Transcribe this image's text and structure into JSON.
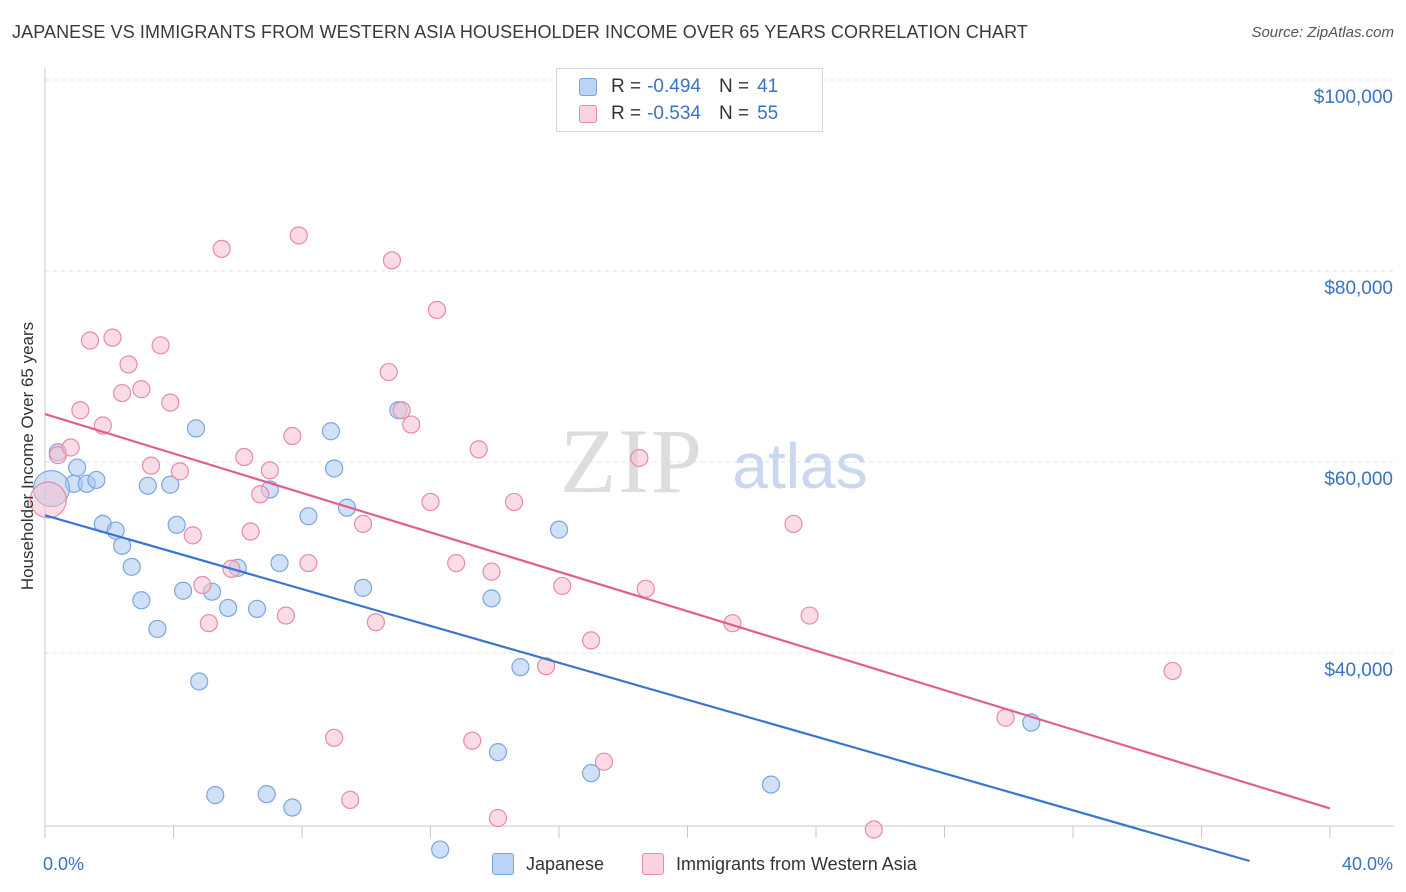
{
  "title": "JAPANESE VS IMMIGRANTS FROM WESTERN ASIA HOUSEHOLDER INCOME OVER 65 YEARS CORRELATION CHART",
  "source": "Source: ZipAtlas.com",
  "watermark": {
    "zip": "ZIP",
    "atlas": "atlas"
  },
  "legend_stats": [
    {
      "r_label": "R =",
      "r_value": "-0.494",
      "n_label": "N =",
      "n_value": "41",
      "color": "#a9c8f0",
      "border": "#7aa6e0"
    },
    {
      "r_label": "R =",
      "r_value": "-0.534",
      "n_label": "N =",
      "n_value": "55",
      "color": "#f7c0d1",
      "border": "#e88aa8"
    }
  ],
  "chart_data": {
    "type": "scatter",
    "ylabel": "Householder Income Over 65 years",
    "x_tick_labels": [
      "0.0%",
      "40.0%"
    ],
    "y_tick_labels": [
      "$40,000",
      "$60,000",
      "$80,000",
      "$100,000"
    ],
    "xlim": [
      0,
      40
    ],
    "ylim": [
      20000,
      102000
    ],
    "y_ticks": [
      40000,
      60000,
      80000,
      100000
    ],
    "grid": true,
    "legend_position": "bottom",
    "series": [
      {
        "name": "Japanese",
        "color": "#3a76d0",
        "fill": "#a9c8f0",
        "trend": {
          "x": [
            0,
            37.5
          ],
          "y": [
            56200,
            20000
          ]
        },
        "points": [
          [
            0.4,
            62800
          ],
          [
            0.9,
            59500
          ],
          [
            1.0,
            61200
          ],
          [
            1.3,
            59500
          ],
          [
            1.6,
            59900
          ],
          [
            1.8,
            55300
          ],
          [
            2.2,
            54600
          ],
          [
            2.4,
            53000
          ],
          [
            2.7,
            50800
          ],
          [
            3.0,
            47300
          ],
          [
            3.2,
            59300
          ],
          [
            3.5,
            44300
          ],
          [
            3.9,
            59400
          ],
          [
            4.1,
            55200
          ],
          [
            4.3,
            48300
          ],
          [
            4.7,
            65300
          ],
          [
            4.8,
            38800
          ],
          [
            5.2,
            48200
          ],
          [
            5.3,
            26900
          ],
          [
            5.7,
            46500
          ],
          [
            6.0,
            50700
          ],
          [
            6.6,
            46400
          ],
          [
            6.9,
            27000
          ],
          [
            7.0,
            58900
          ],
          [
            7.3,
            51200
          ],
          [
            7.7,
            25600
          ],
          [
            8.2,
            56100
          ],
          [
            8.9,
            65000
          ],
          [
            9.0,
            61100
          ],
          [
            9.4,
            57000
          ],
          [
            9.9,
            48600
          ],
          [
            11.0,
            67200
          ],
          [
            12.3,
            21200
          ],
          [
            13.9,
            47500
          ],
          [
            14.1,
            31400
          ],
          [
            14.8,
            40300
          ],
          [
            16.0,
            54700
          ],
          [
            17.0,
            29200
          ],
          [
            22.6,
            28000
          ],
          [
            30.7,
            34500
          ],
          [
            0.2,
            59000
          ]
        ]
      },
      {
        "name": "Immigrants from Western Asia",
        "color": "#e0608a",
        "fill": "#f7c0d1",
        "trend": {
          "x": [
            0,
            40
          ],
          "y": [
            66800,
            25500
          ]
        },
        "points": [
          [
            0.1,
            57800
          ],
          [
            0.4,
            62500
          ],
          [
            0.8,
            63300
          ],
          [
            1.1,
            67200
          ],
          [
            1.4,
            74500
          ],
          [
            1.8,
            65600
          ],
          [
            2.1,
            74800
          ],
          [
            2.4,
            69000
          ],
          [
            2.6,
            72000
          ],
          [
            3.0,
            69400
          ],
          [
            3.3,
            61400
          ],
          [
            3.6,
            74000
          ],
          [
            3.9,
            68000
          ],
          [
            4.2,
            60800
          ],
          [
            4.6,
            54100
          ],
          [
            4.9,
            48900
          ],
          [
            5.1,
            44900
          ],
          [
            5.5,
            84100
          ],
          [
            5.8,
            50600
          ],
          [
            6.2,
            62300
          ],
          [
            6.4,
            54500
          ],
          [
            6.7,
            58400
          ],
          [
            7.0,
            60900
          ],
          [
            7.5,
            45700
          ],
          [
            7.7,
            64500
          ],
          [
            7.9,
            85500
          ],
          [
            8.2,
            51200
          ],
          [
            9.0,
            32900
          ],
          [
            9.5,
            26400
          ],
          [
            9.9,
            55300
          ],
          [
            10.3,
            45000
          ],
          [
            10.7,
            71200
          ],
          [
            10.8,
            82900
          ],
          [
            11.1,
            67200
          ],
          [
            11.4,
            65700
          ],
          [
            12.0,
            57600
          ],
          [
            12.2,
            77700
          ],
          [
            12.8,
            51200
          ],
          [
            13.3,
            32600
          ],
          [
            13.5,
            63100
          ],
          [
            13.9,
            50300
          ],
          [
            14.1,
            24500
          ],
          [
            14.6,
            57600
          ],
          [
            15.6,
            40400
          ],
          [
            16.1,
            48800
          ],
          [
            17.0,
            43100
          ],
          [
            17.4,
            30400
          ],
          [
            18.5,
            62200
          ],
          [
            18.7,
            48500
          ],
          [
            21.4,
            44900
          ],
          [
            23.3,
            55300
          ],
          [
            23.8,
            45700
          ],
          [
            29.9,
            35000
          ],
          [
            35.1,
            39900
          ],
          [
            25.8,
            23300
          ]
        ]
      }
    ]
  }
}
